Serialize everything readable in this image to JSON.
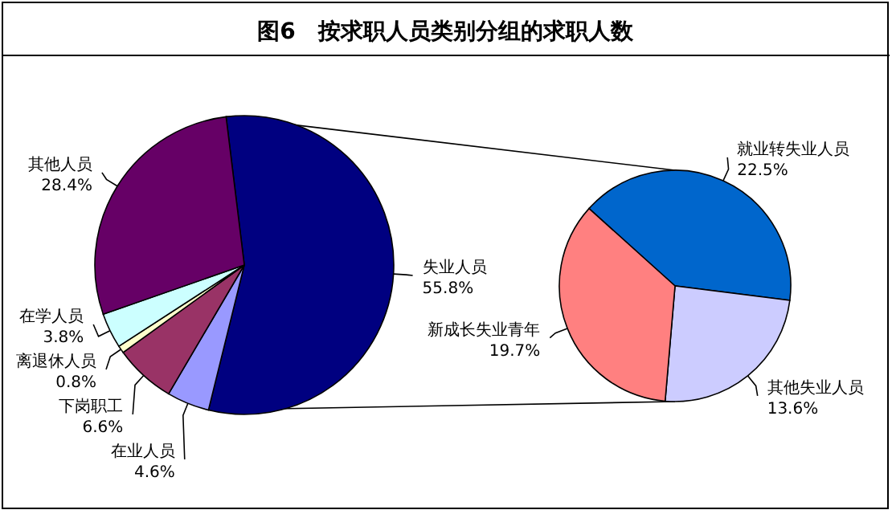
{
  "chart_data": [
    {
      "type": "pie",
      "title": "图6　按求职人员类别分组的求职人数",
      "categories": [
        "失业人员",
        "在业人员",
        "下岗职工",
        "离退休人员",
        "在学人员",
        "其他人员"
      ],
      "values": [
        55.8,
        4.6,
        6.6,
        0.8,
        3.8,
        28.4
      ],
      "colors": [
        "#000080",
        "#9999ff",
        "#993366",
        "#ffffcc",
        "#ccffff",
        "#660066"
      ],
      "value_labels": [
        "55.8%",
        "4.6%",
        "6.6%",
        "0.8%",
        "3.8%",
        "28.4%"
      ]
    },
    {
      "type": "pie",
      "categories": [
        "就业转失业人员",
        "其他失业人员",
        "新成长失业青年"
      ],
      "values": [
        22.5,
        13.6,
        19.7
      ],
      "colors": [
        "#0066cc",
        "#ccccff",
        "#ff8080"
      ],
      "value_labels": [
        "22.5%",
        "13.6%",
        "19.7%"
      ]
    }
  ]
}
